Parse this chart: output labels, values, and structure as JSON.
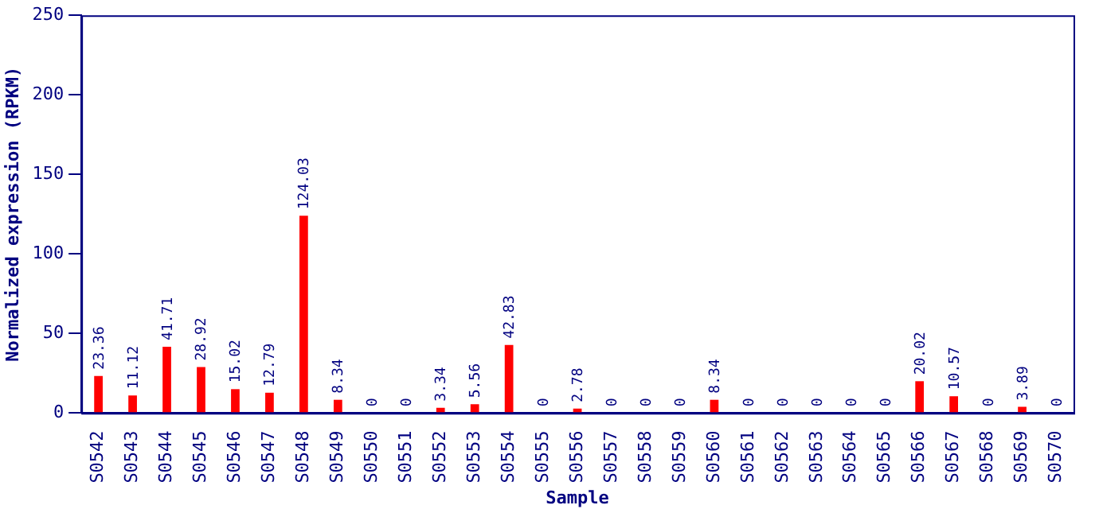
{
  "chart_data": {
    "type": "bar",
    "xlabel": "Sample",
    "ylabel": "Normalized expression (RPKM)",
    "categories": [
      "S0542",
      "S0543",
      "S0544",
      "S0545",
      "S0546",
      "S0547",
      "S0548",
      "S0549",
      "S0550",
      "S0551",
      "S0552",
      "S0553",
      "S0554",
      "S0555",
      "S0556",
      "S0557",
      "S0558",
      "S0559",
      "S0560",
      "S0561",
      "S0562",
      "S0563",
      "S0564",
      "S0565",
      "S0566",
      "S0567",
      "S0568",
      "S0569",
      "S0570"
    ],
    "values": [
      23.36,
      11.12,
      41.71,
      28.92,
      15.02,
      12.79,
      124.03,
      8.34,
      0,
      0,
      3.34,
      5.56,
      42.83,
      0,
      2.78,
      0,
      0,
      0,
      8.34,
      0,
      0,
      0,
      0,
      0,
      20.02,
      10.57,
      0,
      3.89,
      0
    ],
    "color": "#ff0000",
    "ylim": [
      0,
      250
    ],
    "yticks": [
      0,
      50,
      100,
      150,
      200,
      250
    ],
    "grid": false,
    "data_labels": true
  }
}
